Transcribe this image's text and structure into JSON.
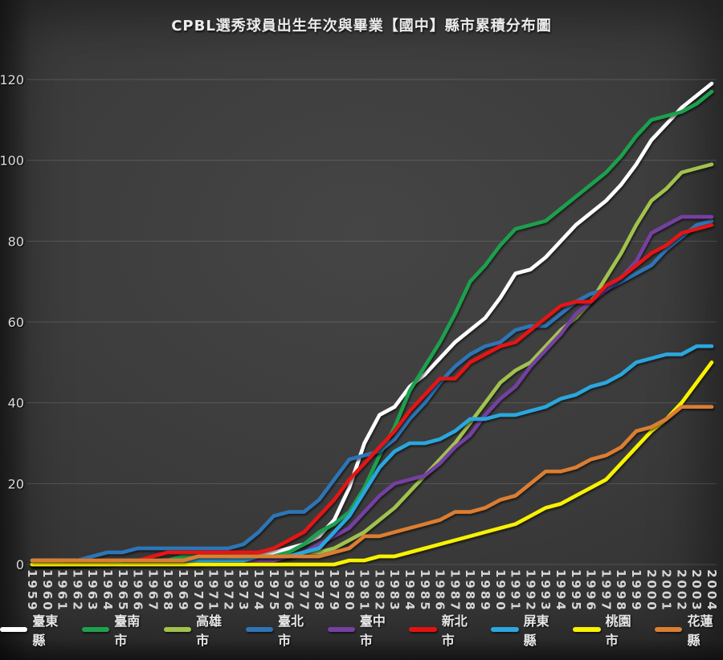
{
  "title": "CPBL選秀球員出生年次與畢業【國中】縣市累積分布圖",
  "chart_data": {
    "type": "line",
    "title": "CPBL選秀球員出生年次與畢業【國中】縣市累積分布圖",
    "xlabel": "",
    "ylabel": "",
    "ylim": [
      0,
      120
    ],
    "yticks": [
      0,
      20,
      40,
      60,
      80,
      100,
      120
    ],
    "grid": true,
    "legend_position": "bottom",
    "x": [
      1959,
      1960,
      1961,
      1962,
      1963,
      1964,
      1965,
      1966,
      1967,
      1968,
      1969,
      1970,
      1971,
      1972,
      1973,
      1974,
      1975,
      1976,
      1977,
      1978,
      1979,
      1980,
      1981,
      1982,
      1983,
      1984,
      1985,
      1986,
      1987,
      1988,
      1989,
      1990,
      1991,
      1992,
      1993,
      1994,
      1995,
      1996,
      1997,
      1998,
      1999,
      2000,
      2001,
      2002,
      2003,
      2004
    ],
    "series": [
      {
        "name": "臺東縣",
        "color": "#ffffff",
        "values": [
          1,
          1,
          1,
          1,
          1,
          1,
          1,
          1,
          1,
          1,
          1,
          1,
          1,
          1,
          1,
          2,
          3,
          4,
          5,
          7,
          11,
          19,
          30,
          37,
          39,
          44,
          47,
          51,
          55,
          58,
          61,
          66,
          72,
          73,
          76,
          80,
          84,
          87,
          90,
          94,
          99,
          105,
          109,
          113,
          116,
          119
        ]
      },
      {
        "name": "臺南市",
        "color": "#1fa04e",
        "values": [
          0,
          0,
          0,
          0,
          1,
          1,
          1,
          1,
          1,
          1,
          2,
          2,
          2,
          2,
          2,
          2,
          2,
          3,
          5,
          8,
          10,
          13,
          19,
          27,
          34,
          43,
          49,
          55,
          62,
          70,
          74,
          79,
          83,
          84,
          85,
          88,
          91,
          94,
          97,
          101,
          106,
          110,
          111,
          112,
          114,
          117
        ]
      },
      {
        "name": "高雄市",
        "color": "#a2c24d",
        "values": [
          0,
          0,
          0,
          0,
          0,
          1,
          1,
          1,
          1,
          1,
          1,
          1,
          1,
          1,
          2,
          2,
          2,
          2,
          3,
          3,
          4,
          6,
          8,
          11,
          14,
          18,
          22,
          26,
          30,
          35,
          40,
          45,
          48,
          50,
          54,
          58,
          61,
          65,
          71,
          77,
          84,
          90,
          93,
          97,
          98,
          99
        ]
      },
      {
        "name": "臺北市",
        "color": "#2e75b6",
        "values": [
          0,
          0,
          0,
          1,
          2,
          3,
          3,
          4,
          4,
          4,
          4,
          4,
          4,
          4,
          5,
          8,
          12,
          13,
          13,
          16,
          21,
          26,
          27,
          28,
          31,
          36,
          40,
          45,
          49,
          52,
          54,
          55,
          58,
          59,
          59,
          62,
          65,
          67,
          68,
          70,
          72,
          74,
          78,
          81,
          84,
          85
        ]
      },
      {
        "name": "臺中市",
        "color": "#7441a2",
        "values": [
          0,
          0,
          0,
          0,
          0,
          0,
          0,
          0,
          0,
          0,
          0,
          0,
          1,
          1,
          1,
          1,
          1,
          2,
          3,
          5,
          7,
          9,
          13,
          17,
          20,
          21,
          22,
          25,
          29,
          32,
          37,
          41,
          44,
          49,
          53,
          57,
          62,
          65,
          68,
          71,
          75,
          82,
          84,
          86,
          86,
          86
        ]
      },
      {
        "name": "新北市",
        "color": "#e31212",
        "values": [
          0,
          0,
          0,
          1,
          1,
          1,
          1,
          1,
          2,
          3,
          3,
          3,
          3,
          3,
          3,
          3,
          4,
          6,
          8,
          12,
          16,
          21,
          25,
          29,
          33,
          38,
          42,
          46,
          46,
          50,
          52,
          54,
          55,
          58,
          61,
          64,
          65,
          65,
          69,
          71,
          74,
          77,
          79,
          82,
          83,
          84
        ]
      },
      {
        "name": "屏東縣",
        "color": "#2ba7de",
        "values": [
          0,
          0,
          0,
          0,
          0,
          0,
          1,
          1,
          1,
          1,
          1,
          1,
          1,
          1,
          1,
          2,
          2,
          2,
          3,
          4,
          8,
          12,
          18,
          24,
          28,
          30,
          30,
          31,
          33,
          36,
          36,
          37,
          37,
          38,
          39,
          41,
          42,
          44,
          45,
          47,
          50,
          51,
          52,
          52,
          54,
          54
        ]
      },
      {
        "name": "桃園市",
        "color": "#f8f200",
        "values": [
          0,
          0,
          0,
          0,
          0,
          0,
          0,
          0,
          0,
          0,
          0,
          0,
          0,
          0,
          0,
          0,
          0,
          0,
          0,
          0,
          0,
          1,
          1,
          2,
          2,
          3,
          4,
          5,
          6,
          7,
          8,
          9,
          10,
          12,
          14,
          15,
          17,
          19,
          21,
          25,
          29,
          33,
          36,
          40,
          45,
          50
        ]
      },
      {
        "name": "花蓮縣",
        "color": "#db7e33",
        "values": [
          1,
          1,
          1,
          1,
          1,
          1,
          1,
          1,
          1,
          1,
          1,
          2,
          2,
          2,
          2,
          2,
          2,
          2,
          2,
          2,
          3,
          4,
          7,
          7,
          8,
          9,
          10,
          11,
          13,
          13,
          14,
          16,
          17,
          20,
          23,
          23,
          24,
          26,
          27,
          29,
          33,
          34,
          36,
          39,
          39,
          39
        ]
      }
    ]
  }
}
